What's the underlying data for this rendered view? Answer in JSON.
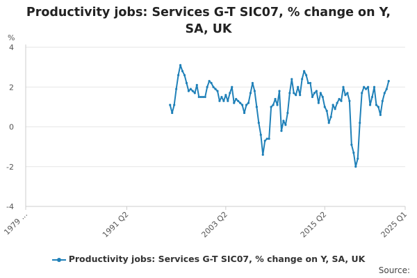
{
  "title": "Productivity jobs: Services G-T SIC07, % change on Y, SA, UK",
  "source_label": "Source:",
  "chart_data": {
    "type": "line",
    "title": "Productivity jobs: Services G-T SIC07, % change on Y, SA, UK",
    "xlabel": "",
    "ylabel": "%",
    "ylim": [
      -4,
      4
    ],
    "yticks": [
      -4,
      -2,
      0,
      2,
      4
    ],
    "x_range": [
      "1979 Q1",
      "2025 Q1"
    ],
    "xticks": [
      "1979 ...",
      "1991 Q2",
      "2003 Q2",
      "2015 Q2",
      "2025 Q1"
    ],
    "grid": true,
    "legend_position": "bottom",
    "colors": {
      "series": "#1f80b8",
      "grid": "#e6e6e6",
      "axis": "#cccccc"
    },
    "series": [
      {
        "name": "Productivity jobs: Services G-T SIC07, % change on Y, SA, UK",
        "x_start": "1996 Q3",
        "values": [
          1.1,
          0.7,
          1.1,
          1.9,
          2.6,
          3.1,
          2.8,
          2.6,
          2.2,
          1.8,
          1.9,
          1.8,
          1.7,
          2.1,
          1.5,
          1.5,
          1.5,
          1.5,
          2.0,
          2.3,
          2.2,
          2.0,
          1.9,
          1.8,
          1.3,
          1.5,
          1.3,
          1.6,
          1.3,
          1.7,
          2.0,
          1.2,
          1.4,
          1.3,
          1.2,
          1.1,
          0.7,
          1.1,
          1.2,
          1.7,
          2.2,
          1.8,
          1.0,
          0.2,
          -0.4,
          -1.4,
          -0.7,
          -0.6,
          -0.6,
          1.0,
          1.1,
          1.4,
          1.1,
          1.8,
          -0.2,
          0.3,
          0.1,
          0.7,
          1.7,
          2.4,
          1.7,
          1.6,
          2.0,
          1.6,
          2.4,
          2.8,
          2.6,
          2.2,
          2.2,
          1.5,
          1.7,
          1.8,
          1.2,
          1.7,
          1.5,
          1.0,
          0.8,
          0.2,
          0.5,
          1.1,
          0.9,
          1.2,
          1.4,
          1.3,
          2.0,
          1.6,
          1.7,
          1.3,
          -0.9,
          -1.3,
          -2.0,
          -1.6,
          0.2,
          1.7,
          2.0,
          1.9,
          2.0,
          1.1,
          1.5,
          2.0,
          1.1,
          1.0,
          0.6,
          1.3,
          1.7,
          1.9,
          2.3
        ]
      }
    ]
  }
}
